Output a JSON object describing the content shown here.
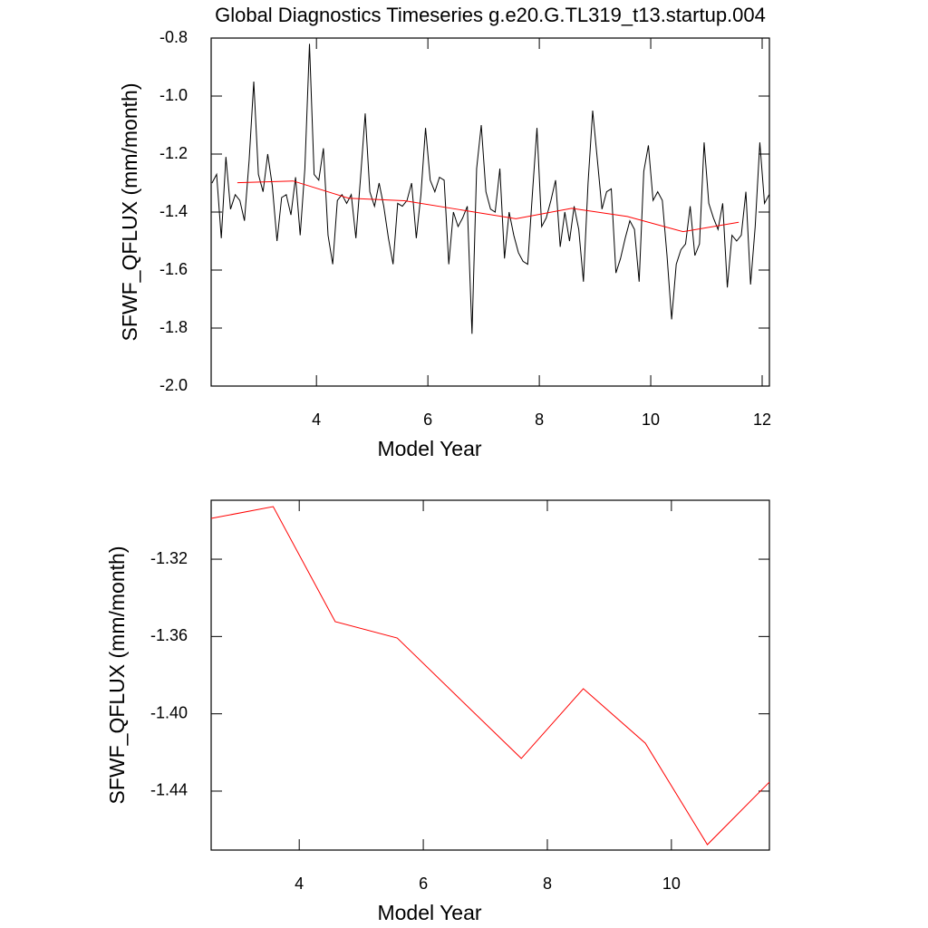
{
  "chart_data": [
    {
      "type": "line",
      "title": "Global Diagnostics Timeseries g.e20.G.TL319_t13.startup.004",
      "xlabel": "Model Year",
      "ylabel": "SFWF_QFLUX (mm/month)",
      "xlim": [
        2.11,
        12.13
      ],
      "xticks": [
        4,
        6,
        8,
        10,
        12
      ],
      "ylim": [
        -2.0,
        -0.8
      ],
      "yticks": [
        {
          "value": -2.0,
          "label": "-2.0"
        },
        -1.8,
        -1.6,
        -1.4,
        -1.2,
        {
          "value": -1.0,
          "label": "-1.0"
        },
        -0.8
      ],
      "series": [
        {
          "color": "#000000",
          "x": [
            2.125,
            2.208,
            2.292,
            2.375,
            2.458,
            2.542,
            2.625,
            2.708,
            2.792,
            2.875,
            2.958,
            3.042,
            3.125,
            3.208,
            3.292,
            3.375,
            3.458,
            3.542,
            3.625,
            3.708,
            3.792,
            3.875,
            3.958,
            4.042,
            4.125,
            4.208,
            4.292,
            4.375,
            4.458,
            4.542,
            4.625,
            4.708,
            4.792,
            4.875,
            4.958,
            5.042,
            5.125,
            5.208,
            5.292,
            5.375,
            5.458,
            5.542,
            5.625,
            5.708,
            5.792,
            5.875,
            5.958,
            6.042,
            6.125,
            6.208,
            6.292,
            6.375,
            6.458,
            6.542,
            6.625,
            6.708,
            6.792,
            6.875,
            6.958,
            7.042,
            7.125,
            7.208,
            7.292,
            7.375,
            7.458,
            7.542,
            7.625,
            7.708,
            7.792,
            7.875,
            7.958,
            8.042,
            8.125,
            8.208,
            8.292,
            8.375,
            8.458,
            8.542,
            8.625,
            8.708,
            8.792,
            8.875,
            8.958,
            9.042,
            9.125,
            9.208,
            9.292,
            9.375,
            9.458,
            9.542,
            9.625,
            9.708,
            9.792,
            9.875,
            9.958,
            10.042,
            10.125,
            10.208,
            10.292,
            10.375,
            10.458,
            10.542,
            10.625,
            10.708,
            10.792,
            10.875,
            10.958,
            11.042,
            11.125,
            11.208,
            11.292,
            11.375,
            11.458,
            11.542,
            11.625,
            11.708,
            11.792,
            11.875,
            11.958,
            12.042,
            12.125
          ],
          "values": [
            -1.3,
            -1.27,
            -1.49,
            -1.21,
            -1.39,
            -1.34,
            -1.36,
            -1.43,
            -1.22,
            -0.95,
            -1.27,
            -1.33,
            -1.2,
            -1.31,
            -1.5,
            -1.35,
            -1.34,
            -1.41,
            -1.28,
            -1.48,
            -1.25,
            -0.82,
            -1.27,
            -1.29,
            -1.18,
            -1.48,
            -1.58,
            -1.36,
            -1.34,
            -1.37,
            -1.34,
            -1.49,
            -1.28,
            -1.06,
            -1.33,
            -1.38,
            -1.3,
            -1.38,
            -1.49,
            -1.58,
            -1.37,
            -1.38,
            -1.36,
            -1.3,
            -1.49,
            -1.34,
            -1.11,
            -1.29,
            -1.33,
            -1.28,
            -1.29,
            -1.58,
            -1.4,
            -1.45,
            -1.42,
            -1.38,
            -1.82,
            -1.25,
            -1.1,
            -1.33,
            -1.39,
            -1.4,
            -1.25,
            -1.56,
            -1.4,
            -1.48,
            -1.54,
            -1.57,
            -1.58,
            -1.34,
            -1.11,
            -1.45,
            -1.42,
            -1.36,
            -1.29,
            -1.52,
            -1.4,
            -1.5,
            -1.38,
            -1.46,
            -1.64,
            -1.3,
            -1.05,
            -1.22,
            -1.39,
            -1.33,
            -1.32,
            -1.61,
            -1.56,
            -1.49,
            -1.43,
            -1.46,
            -1.64,
            -1.26,
            -1.17,
            -1.36,
            -1.33,
            -1.36,
            -1.55,
            -1.77,
            -1.58,
            -1.53,
            -1.51,
            -1.38,
            -1.55,
            -1.51,
            -1.16,
            -1.37,
            -1.42,
            -1.46,
            -1.37,
            -1.66,
            -1.48,
            -1.5,
            -1.48,
            -1.33,
            -1.65,
            -1.45,
            -1.16,
            -1.37,
            -1.34
          ]
        },
        {
          "color": "#ff0000",
          "x": [
            2.58,
            3.58,
            4.58,
            5.58,
            6.58,
            7.58,
            8.58,
            9.58,
            10.58,
            11.58
          ],
          "values": [
            -1.2989,
            -1.2928,
            -1.3523,
            -1.3608,
            -1.392,
            -1.4231,
            -1.387,
            -1.4152,
            -1.4677,
            -1.4353
          ]
        }
      ]
    },
    {
      "type": "line",
      "xlabel": "Model Year",
      "ylabel": "SFWF_QFLUX (mm/month)",
      "xlim": [
        2.58,
        11.58
      ],
      "xticks": [
        4,
        6,
        8,
        10
      ],
      "ylim": [
        -1.4705,
        -1.2895
      ],
      "yticks": [
        -1.44,
        {
          "value": -1.4,
          "label": "-1.40"
        },
        -1.36,
        -1.32
      ],
      "series": [
        {
          "color": "#ff0000",
          "x": [
            2.58,
            3.58,
            4.58,
            5.58,
            6.58,
            7.58,
            8.58,
            9.58,
            10.58,
            11.58
          ],
          "values": [
            -1.2989,
            -1.2928,
            -1.3523,
            -1.3608,
            -1.392,
            -1.4231,
            -1.387,
            -1.4152,
            -1.4677,
            -1.4353
          ]
        }
      ]
    }
  ]
}
